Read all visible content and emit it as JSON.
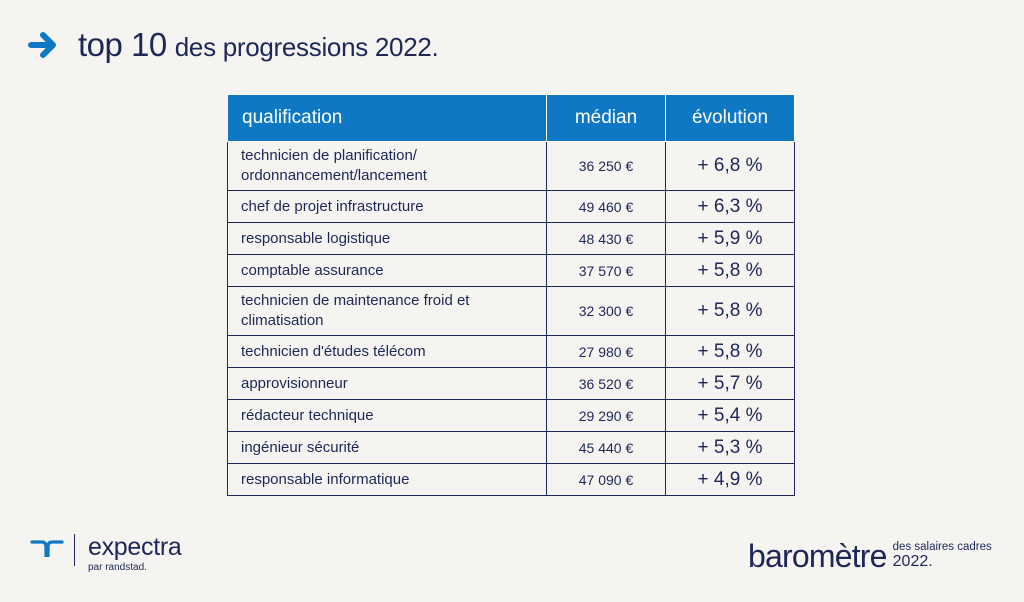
{
  "header": {
    "title_strong": "top 10",
    "title_rest": "des progressions 2022."
  },
  "table": {
    "columns": [
      "qualification",
      "médian",
      "évolution"
    ],
    "rows": [
      {
        "qualification": "technicien de planification/ ordonnancement/lancement",
        "median": "36 250 €",
        "evolution": "+ 6,8 %"
      },
      {
        "qualification": "chef de projet infrastructure",
        "median": "49 460 €",
        "evolution": "+ 6,3 %"
      },
      {
        "qualification": "responsable logistique",
        "median": "48 430 €",
        "evolution": "+ 5,9 %"
      },
      {
        "qualification": "comptable assurance",
        "median": "37 570 €",
        "evolution": "+ 5,8 %"
      },
      {
        "qualification": "technicien de maintenance froid et climatisation",
        "median": "32 300 €",
        "evolution": "+ 5,8 %"
      },
      {
        "qualification": "technicien d'études télécom",
        "median": "27 980 €",
        "evolution": "+ 5,8 %"
      },
      {
        "qualification": "approvisionneur",
        "median": "36 520 €",
        "evolution": "+ 5,7 %"
      },
      {
        "qualification": "rédacteur technique",
        "median": "29 290 €",
        "evolution": "+ 5,4 %"
      },
      {
        "qualification": "ingénieur sécurité",
        "median": "45 440 €",
        "evolution": "+ 5,3 %"
      },
      {
        "qualification": "responsable informatique",
        "median": "47 090 €",
        "evolution": "+ 4,9 %"
      }
    ]
  },
  "footer": {
    "brand": "expectra",
    "brand_sub": "par randstad.",
    "barometre": "baromètre",
    "barometre_sub": "des salaires cadres",
    "barometre_year": "2022."
  },
  "colors": {
    "accent": "#0f78c5",
    "navy": "#1d2758",
    "background": "#f6f4f0"
  },
  "icons": [
    "arrow-right-icon",
    "randstad-logo-icon"
  ]
}
